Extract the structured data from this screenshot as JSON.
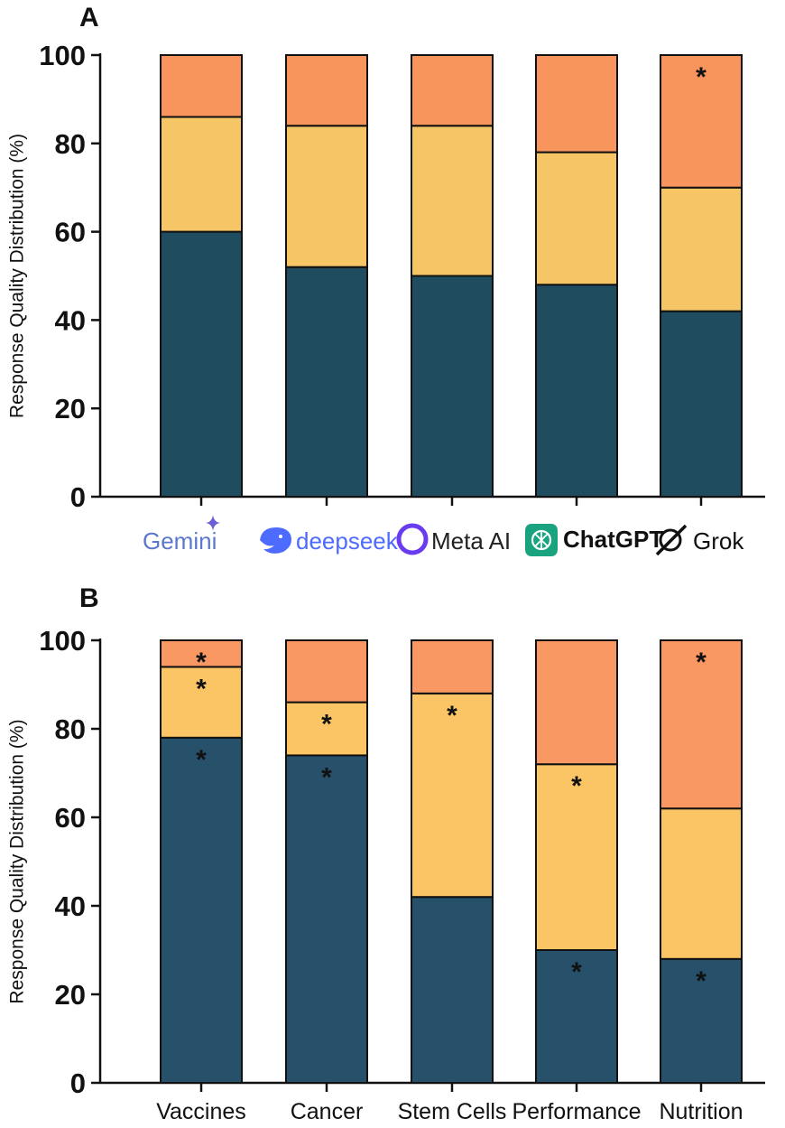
{
  "chart_data": [
    {
      "type": "bar",
      "stacked": true,
      "panel": "A",
      "ylabel": "Response Quality Distribution (%)",
      "ylim": [
        0,
        100
      ],
      "yticks": [
        "0",
        "20",
        "40",
        "60",
        "80",
        "100"
      ],
      "categories": [
        "Gemini",
        "deepseek",
        "Meta AI",
        "ChatGPT",
        "Grok"
      ],
      "category_icons": [
        "gemini-spark-icon",
        "deepseek-whale-icon",
        "meta-ring-icon",
        "chatgpt-knot-icon",
        "grok-slash-icon"
      ],
      "series": [
        {
          "color": "#1f4d5f",
          "values": [
            60,
            52,
            50,
            48,
            42
          ]
        },
        {
          "color": "#f6c566",
          "values": [
            26,
            32,
            34,
            30,
            28
          ]
        },
        {
          "color": "#f7955c",
          "values": [
            14,
            16,
            16,
            22,
            30
          ]
        }
      ],
      "annotations": [
        {
          "category": "Grok",
          "segment": 2,
          "text": "*"
        }
      ]
    },
    {
      "type": "bar",
      "stacked": true,
      "panel": "B",
      "ylabel": "Response Quality Distribution (%)",
      "ylim": [
        0,
        100
      ],
      "yticks": [
        "0",
        "20",
        "40",
        "60",
        "80",
        "100"
      ],
      "categories": [
        "Vaccines",
        "Cancer",
        "Stem Cells",
        "Performance",
        "Nutrition"
      ],
      "series": [
        {
          "color": "#27506a",
          "values": [
            78,
            74,
            42,
            30,
            28
          ]
        },
        {
          "color": "#fbc566",
          "values": [
            16,
            12,
            46,
            42,
            34
          ]
        },
        {
          "color": "#f99862",
          "values": [
            6,
            14,
            12,
            28,
            38
          ]
        }
      ],
      "annotations": [
        {
          "category": "Vaccines",
          "segment": 0,
          "text": "*"
        },
        {
          "category": "Vaccines",
          "segment": 1,
          "text": "*"
        },
        {
          "category": "Vaccines",
          "segment": 2,
          "text": "*"
        },
        {
          "category": "Cancer",
          "segment": 0,
          "text": "*"
        },
        {
          "category": "Cancer",
          "segment": 1,
          "text": "*"
        },
        {
          "category": "Stem Cells",
          "segment": 1,
          "text": "*"
        },
        {
          "category": "Performance",
          "segment": 0,
          "text": "*"
        },
        {
          "category": "Performance",
          "segment": 1,
          "text": "*"
        },
        {
          "category": "Nutrition",
          "segment": 0,
          "text": "*"
        },
        {
          "category": "Nutrition",
          "segment": 2,
          "text": "*"
        }
      ]
    }
  ]
}
